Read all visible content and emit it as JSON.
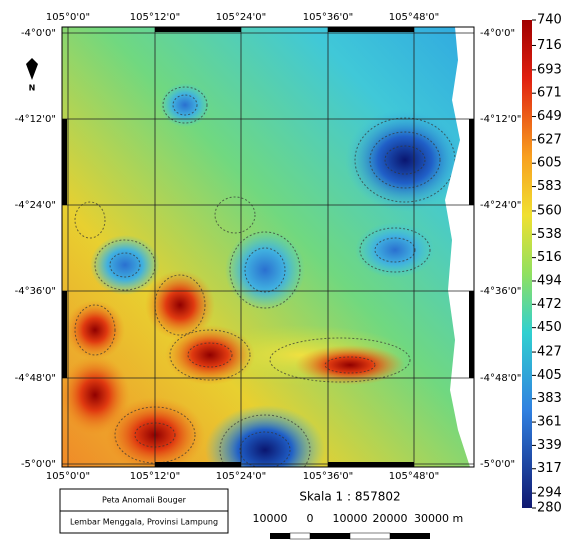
{
  "map": {
    "top_labels": [
      "105°0'0\"",
      "105°12'0\"",
      "105°24'0\"",
      "105°36'0\"",
      "105°48'0\""
    ],
    "bottom_labels": [
      "105°0'0\"",
      "105°12'0\"",
      "105°24'0\"",
      "105°36'0\"",
      "105°48'0\""
    ],
    "left_labels": [
      "-4°0'0\"",
      "-4°12'0\"",
      "-4°24'0\"",
      "-4°36'0\"",
      "-4°48'0\"",
      "-5°0'0\""
    ],
    "right_labels": [
      "-4°0'0\"",
      "-4°12'0\"",
      "-4°24'0\"",
      "-4°36'0\"",
      "-4°48'0\"",
      "-5°0'0\""
    ],
    "north": "N"
  },
  "colorbar": {
    "range": [
      280,
      740
    ],
    "ticks": [
      740,
      716,
      693,
      671,
      649,
      627,
      605,
      583,
      560,
      538,
      516,
      494,
      472,
      450,
      427,
      405,
      383,
      361,
      339,
      317,
      294,
      280
    ]
  },
  "legend_box": {
    "title": "Peta Anomali Bouger",
    "subtitle": "Lembar Menggala, Provinsi Lampung"
  },
  "scale": {
    "text": "Skala 1 : 857802",
    "labels": [
      "10000",
      "0",
      "10000",
      "20000",
      "30000 m"
    ]
  }
}
